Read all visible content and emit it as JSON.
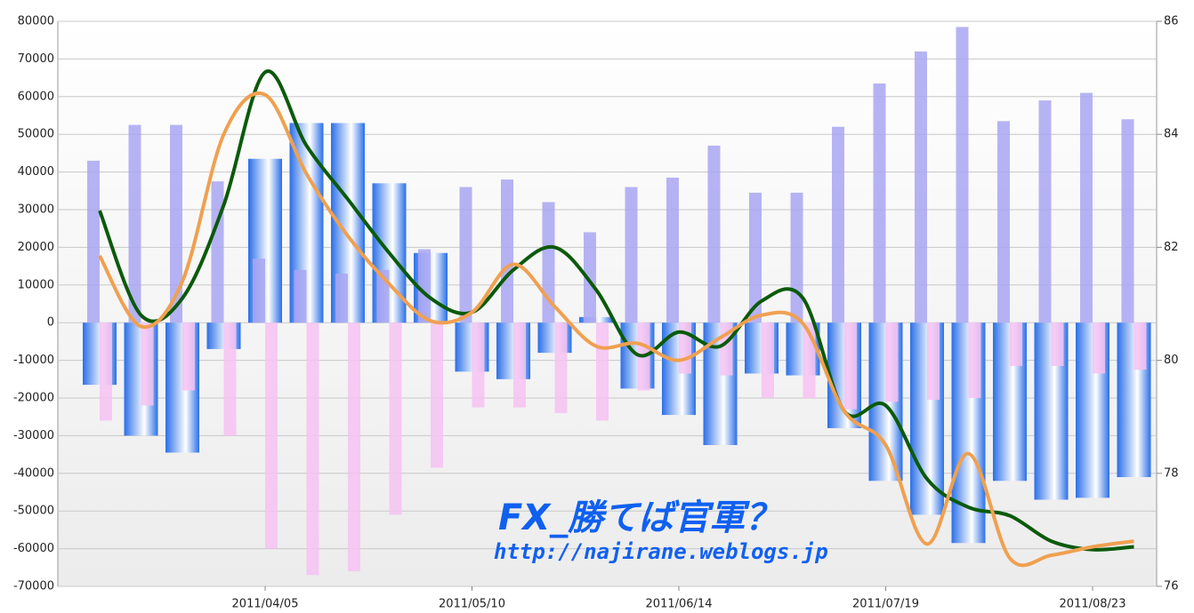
{
  "chart_data": {
    "type": "combo",
    "categories": [
      null,
      null,
      null,
      null,
      "2011/04/05",
      null,
      null,
      null,
      null,
      "2011/05/10",
      null,
      null,
      null,
      null,
      "2011/06/14",
      null,
      null,
      null,
      null,
      "2011/07/19",
      null,
      null,
      null,
      null,
      "2011/08/23",
      null
    ],
    "series": [
      {
        "kind": "bar",
        "color": "#2a6fe8",
        "values": [
          -16500,
          -30000,
          -34500,
          -7000,
          43500,
          53000,
          53000,
          37000,
          18500,
          -13000,
          -15000,
          -8000,
          1500,
          -17500,
          -24500,
          -32500,
          -13500,
          -14000,
          -28000,
          -42000,
          -51000,
          -58500,
          -42000,
          -47000,
          -46500,
          -41000
        ]
      },
      {
        "kind": "bar",
        "color": "#a9a6f2",
        "values": [
          43000,
          52500,
          52500,
          37500,
          17000,
          14000,
          13000,
          14000,
          19500,
          36000,
          38000,
          32000,
          24000,
          36000,
          38500,
          47000,
          34500,
          34500,
          52000,
          63500,
          72000,
          78500,
          53500,
          59000,
          61000,
          54000
        ]
      },
      {
        "kind": "bar",
        "color": "#f6c2f2",
        "values": [
          -26000,
          -22000,
          -18000,
          -30000,
          -60000,
          -67000,
          -66000,
          -51000,
          -38500,
          -22500,
          -22500,
          -24000,
          -26000,
          -18000,
          -13500,
          -14000,
          -20000,
          -20000,
          -23000,
          -21000,
          -20500,
          -20000,
          -11500,
          -11500,
          -13500,
          -12500
        ]
      },
      {
        "kind": "line",
        "axis": "y2",
        "color": "#0b5a0b",
        "values": [
          82.65,
          80.8,
          81.1,
          82.75,
          85.1,
          83.8,
          82.85,
          81.9,
          81.1,
          80.85,
          81.6,
          82.0,
          81.25,
          80.1,
          80.5,
          80.25,
          81.05,
          81.1,
          79.1,
          79.2,
          77.9,
          77.4,
          77.25,
          76.8,
          76.65,
          76.7
        ]
      },
      {
        "kind": "line",
        "axis": "y2",
        "color": "#f0a050",
        "values": [
          81.85,
          80.6,
          81.4,
          84.0,
          84.7,
          83.3,
          82.2,
          81.35,
          80.7,
          80.85,
          81.7,
          80.95,
          80.25,
          80.3,
          80.0,
          80.4,
          80.8,
          80.65,
          79.1,
          78.5,
          76.75,
          78.35,
          76.5,
          76.55,
          76.7,
          76.8
        ]
      }
    ],
    "ylim": [
      -70000,
      80000
    ],
    "yticks": [
      -70000,
      -60000,
      -50000,
      -40000,
      -30000,
      -20000,
      -10000,
      0,
      10000,
      20000,
      30000,
      40000,
      50000,
      60000,
      70000,
      80000
    ],
    "y2lim": [
      76,
      86
    ],
    "y2ticks": [
      76,
      78,
      80,
      82,
      84,
      86
    ],
    "grid": true,
    "annotations": [
      "FX_勝てば官軍？",
      "http://najirane.weblogs.jp"
    ]
  }
}
